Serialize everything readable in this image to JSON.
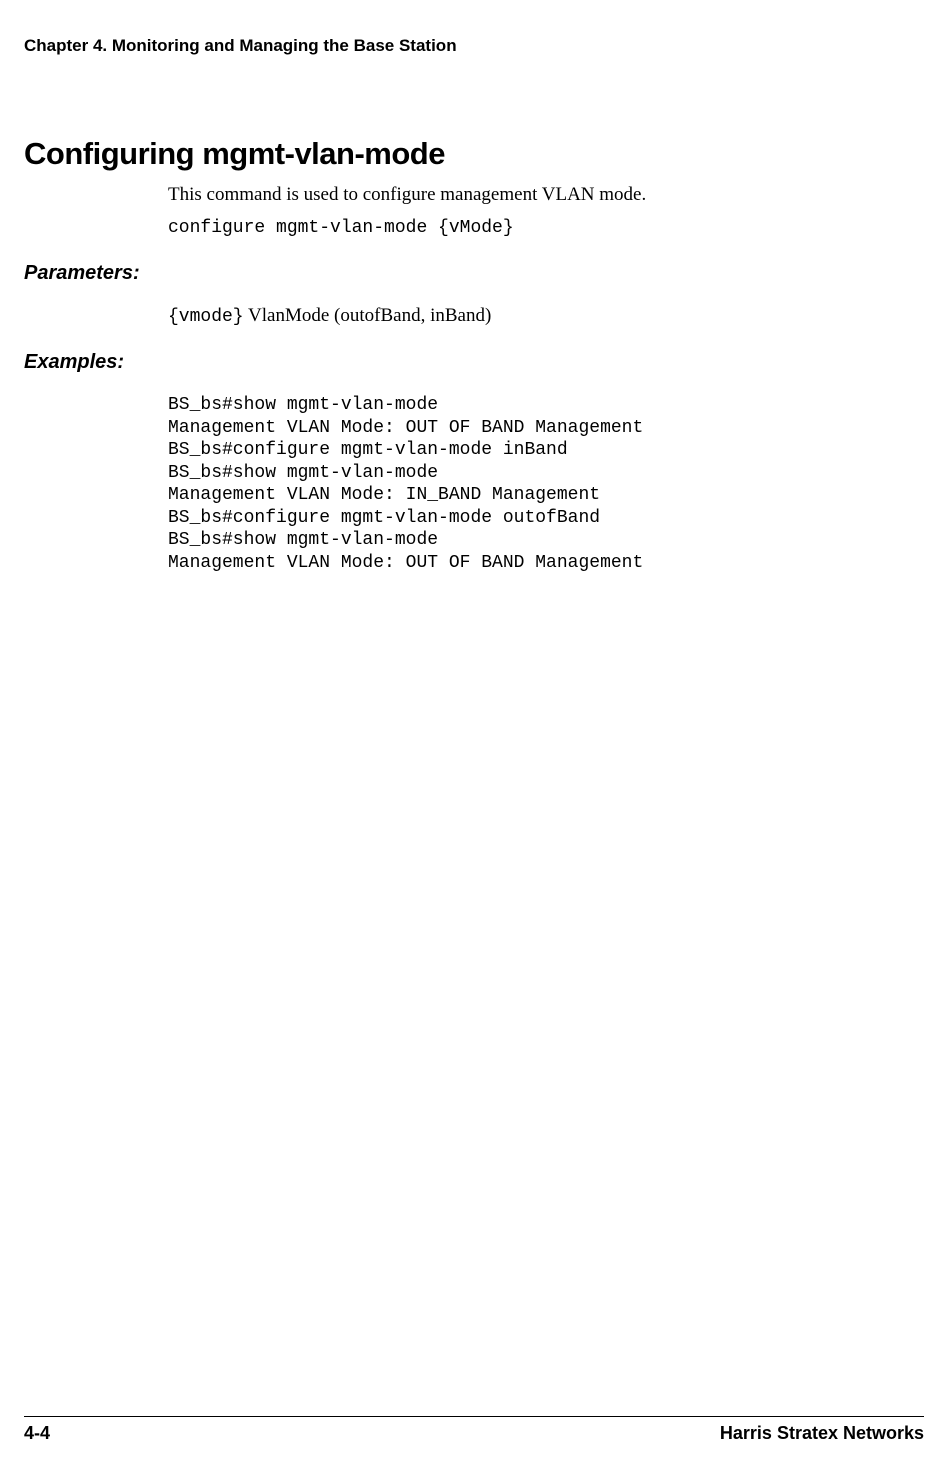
{
  "header": {
    "chapter_line": "Chapter 4.  Monitoring and Managing the Base Station"
  },
  "section": {
    "title": "Configuring mgmt-vlan-mode",
    "intro": "This command is used to configure management VLAN mode.",
    "syntax": "configure mgmt-vlan-mode {vMode}"
  },
  "parameters": {
    "heading": "Parameters:",
    "param_code": "{vmode}",
    "param_desc": " VlanMode (outofBand, inBand)"
  },
  "examples": {
    "heading": "Examples:",
    "block": "BS_bs#show mgmt-vlan-mode\nManagement VLAN Mode: OUT OF BAND Management\nBS_bs#configure mgmt-vlan-mode inBand\nBS_bs#show mgmt-vlan-mode\nManagement VLAN Mode: IN_BAND Management\nBS_bs#configure mgmt-vlan-mode outofBand\nBS_bs#show mgmt-vlan-mode\nManagement VLAN Mode: OUT OF BAND Management"
  },
  "footer": {
    "page_num": "4-4",
    "company": "Harris Stratex Networks"
  },
  "colors": {
    "text": "#000000",
    "background": "#ffffff",
    "rule": "#000000"
  },
  "fonts": {
    "heading_family": "Verdana, Geneva, sans-serif",
    "body_serif": "Georgia, 'Times New Roman', serif",
    "mono": "Courier New, Courier, monospace"
  }
}
